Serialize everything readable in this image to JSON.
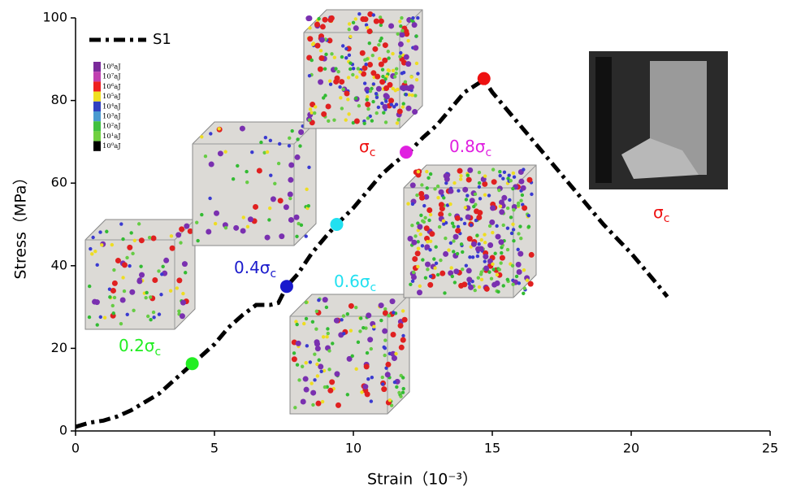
{
  "chart_data": {
    "type": "line",
    "xlabel": "Strain（10⁻³）",
    "ylabel": "Stress（MPa）",
    "xlim": [
      0,
      25
    ],
    "xticks": [
      0,
      5,
      10,
      15,
      20,
      25
    ],
    "ylim": [
      0,
      100
    ],
    "yticks": [
      0,
      20,
      40,
      60,
      80,
      100
    ],
    "grid": false,
    "legend": "upper left",
    "series": [
      {
        "name": "S1",
        "color": "#000000",
        "x": [
          0,
          0.5,
          1,
          1.5,
          2,
          2.5,
          3,
          3.5,
          4,
          4.2,
          4.5,
          5,
          5.5,
          6,
          6.5,
          7,
          7.3,
          7.6,
          8,
          8.5,
          9,
          9.4,
          10,
          10.5,
          11,
          11.5,
          12,
          12.5,
          13,
          13.5,
          14,
          14.7,
          15,
          16,
          17,
          18,
          19,
          20,
          21,
          21.3
        ],
        "values": [
          1,
          2,
          2.5,
          3.5,
          5,
          7,
          9,
          12,
          15,
          16.3,
          18,
          21,
          25,
          28,
          30.5,
          30.5,
          31,
          35,
          38,
          43,
          47,
          50,
          54,
          58,
          62,
          65,
          67.5,
          71,
          74,
          78,
          82,
          85,
          82,
          74,
          66,
          58,
          50,
          43,
          35,
          32.5
        ]
      }
    ],
    "points": {
      "x": [
        4.2,
        7.6,
        9.4,
        11.9,
        14.7
      ],
      "values": [
        16.3,
        35,
        50,
        67.5,
        85.3
      ],
      "colors": [
        "#22ee22",
        "#1a1acc",
        "#22e0f0",
        "#e020e0",
        "#ee1111"
      ]
    },
    "annotations": [
      {
        "text": "0.2σ",
        "sub": "c",
        "color": "#22ee22"
      },
      {
        "text": "0.4σ",
        "sub": "c",
        "color": "#1a1acc"
      },
      {
        "text": "0.6σ",
        "sub": "c",
        "color": "#22e0f0"
      },
      {
        "text": "0.8σ",
        "sub": "c",
        "color": "#e020e0"
      },
      {
        "text": "σ",
        "sub": "c",
        "color": "#ee1111"
      },
      {
        "text": "σ",
        "sub": "c",
        "color": "#ee1111"
      }
    ],
    "energy_legend": {
      "labels": [
        "10⁸aJ",
        "10⁷aJ",
        "10⁶aJ",
        "10⁵aJ",
        "10⁴aJ",
        "10³aJ",
        "10²aJ",
        "10¹aJ",
        "10⁰aJ"
      ],
      "colors": [
        "#7a2a9a",
        "#c040b0",
        "#ee2020",
        "#f0e020",
        "#3040c0",
        "#4a9ad0",
        "#40c040",
        "#70d040",
        "#000000"
      ]
    }
  }
}
